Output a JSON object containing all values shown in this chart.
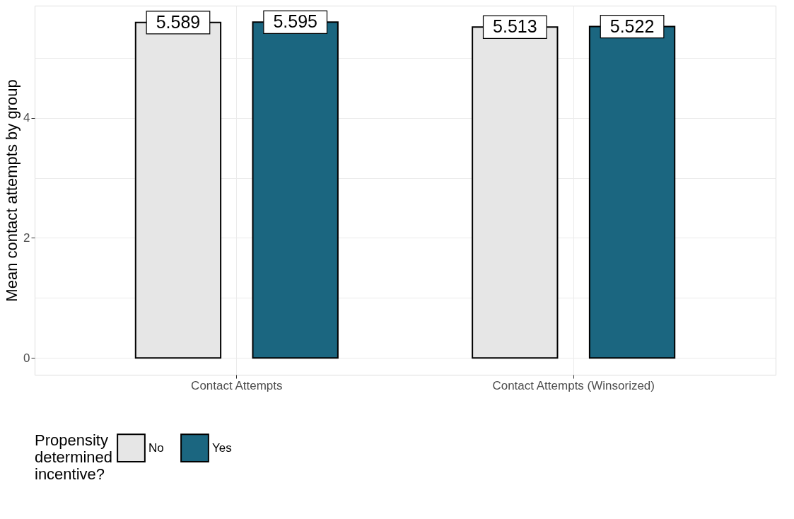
{
  "chart_data": {
    "type": "bar",
    "ylabel": "Mean contact attempts by group",
    "legend_title": "Propensity determined incentive?",
    "categories": [
      "Contact Attempts",
      "Contact Attempts (Winsorized)"
    ],
    "series": [
      {
        "name": "No",
        "color": "#e6e6e6",
        "values": [
          5.589,
          5.513
        ]
      },
      {
        "name": "Yes",
        "color": "#1b6680",
        "values": [
          5.595,
          5.522
        ]
      }
    ],
    "ylim": [
      -0.28,
      5.87
    ],
    "yticks": [
      0,
      {
        "value": 1,
        "label": null
      },
      2,
      {
        "value": 3,
        "label": null
      },
      4,
      {
        "value": 5,
        "label": null
      }
    ],
    "grid": true,
    "legend": "bottom",
    "data_labels": true
  }
}
